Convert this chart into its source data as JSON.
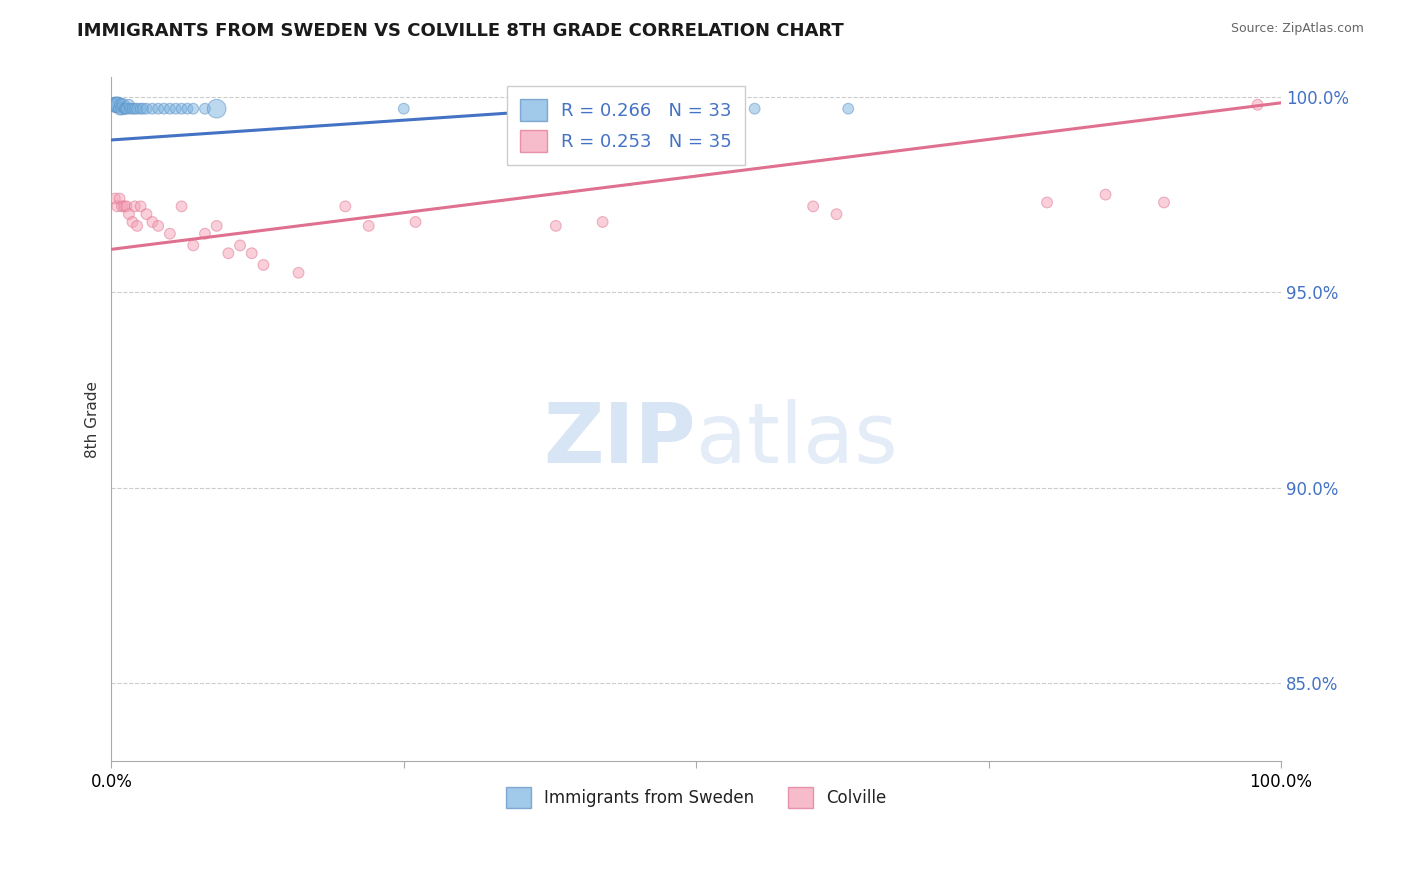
{
  "title": "IMMIGRANTS FROM SWEDEN VS COLVILLE 8TH GRADE CORRELATION CHART",
  "source": "Source: ZipAtlas.com",
  "ylabel": "8th Grade",
  "legend_blue": "R = 0.266   N = 33",
  "legend_pink": "R = 0.253   N = 35",
  "legend_label1": "Immigrants from Sweden",
  "legend_label2": "Colville",
  "blue_scatter_x": [
    0.003,
    0.004,
    0.005,
    0.006,
    0.007,
    0.008,
    0.009,
    0.01,
    0.011,
    0.012,
    0.013,
    0.015,
    0.016,
    0.018,
    0.02,
    0.022,
    0.025,
    0.027,
    0.03,
    0.035,
    0.04,
    0.045,
    0.05,
    0.055,
    0.06,
    0.065,
    0.07,
    0.08,
    0.09,
    0.25,
    0.42,
    0.55,
    0.63
  ],
  "blue_scatter_y": [
    0.998,
    0.998,
    0.998,
    0.998,
    0.997,
    0.998,
    0.997,
    0.998,
    0.997,
    0.997,
    0.997,
    0.998,
    0.997,
    0.997,
    0.997,
    0.997,
    0.997,
    0.997,
    0.997,
    0.997,
    0.997,
    0.997,
    0.997,
    0.997,
    0.997,
    0.997,
    0.997,
    0.997,
    0.997,
    0.997,
    0.997,
    0.997,
    0.997
  ],
  "blue_scatter_sizes": [
    120,
    120,
    120,
    120,
    80,
    80,
    80,
    80,
    60,
    60,
    60,
    60,
    60,
    60,
    60,
    60,
    60,
    60,
    60,
    60,
    60,
    60,
    60,
    60,
    60,
    60,
    60,
    60,
    180,
    60,
    60,
    60,
    60
  ],
  "pink_scatter_x": [
    0.003,
    0.005,
    0.007,
    0.009,
    0.011,
    0.013,
    0.015,
    0.018,
    0.02,
    0.022,
    0.025,
    0.03,
    0.035,
    0.04,
    0.05,
    0.06,
    0.07,
    0.08,
    0.09,
    0.1,
    0.11,
    0.12,
    0.13,
    0.16,
    0.2,
    0.22,
    0.26,
    0.38,
    0.42,
    0.6,
    0.62,
    0.8,
    0.85,
    0.9,
    0.98
  ],
  "pink_scatter_y": [
    0.974,
    0.972,
    0.974,
    0.972,
    0.972,
    0.972,
    0.97,
    0.968,
    0.972,
    0.967,
    0.972,
    0.97,
    0.968,
    0.967,
    0.965,
    0.972,
    0.962,
    0.965,
    0.967,
    0.96,
    0.962,
    0.96,
    0.957,
    0.955,
    0.972,
    0.967,
    0.968,
    0.967,
    0.968,
    0.972,
    0.97,
    0.973,
    0.975,
    0.973,
    0.998
  ],
  "pink_scatter_sizes": [
    60,
    60,
    60,
    60,
    60,
    60,
    60,
    60,
    60,
    60,
    60,
    60,
    60,
    60,
    60,
    60,
    60,
    60,
    60,
    60,
    60,
    60,
    60,
    60,
    60,
    60,
    60,
    60,
    60,
    60,
    60,
    60,
    60,
    60,
    60
  ],
  "blue_line_x": [
    0.0,
    0.42
  ],
  "blue_line_y": [
    0.989,
    0.9975
  ],
  "pink_line_x": [
    0.0,
    1.0
  ],
  "pink_line_y": [
    0.961,
    0.9985
  ],
  "xlim": [
    0.0,
    1.0
  ],
  "ylim": [
    0.83,
    1.005
  ],
  "yticks": [
    0.85,
    0.9,
    0.95,
    1.0
  ],
  "ytick_labels": [
    "85.0%",
    "90.0%",
    "95.0%",
    "100.0%"
  ],
  "xtick_vals": [
    0.0,
    0.25,
    0.5,
    0.75,
    1.0
  ],
  "xtick_left": "0.0%",
  "xtick_right": "100.0%",
  "blue_color": "#7ab3e0",
  "blue_edge": "#5b8ec4",
  "blue_line_color": "#4472c4",
  "pink_color": "#f4a0b5",
  "pink_edge": "#e07090",
  "pink_line_color": "#e07090",
  "background_color": "#ffffff",
  "grid_color": "#cccccc",
  "title_color": "#1a1a1a",
  "ytick_color": "#4472c4",
  "watermark_color": "#c8daf0"
}
